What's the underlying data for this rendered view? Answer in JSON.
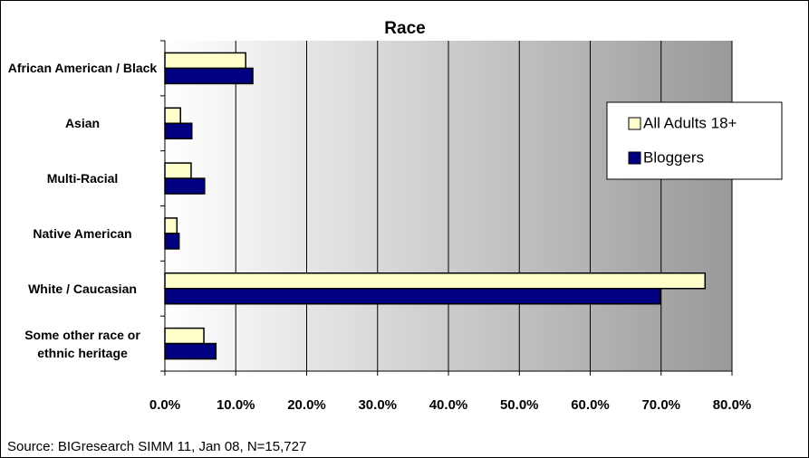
{
  "chart_data": {
    "type": "barh",
    "title": "Race",
    "categories": [
      "African American / Black",
      "Asian",
      "Multi-Racial",
      "Native American",
      "White / Caucasian",
      "Some other race or ethnic heritage"
    ],
    "series": [
      {
        "name": "All Adults 18+",
        "color": "#ffffcc",
        "values": [
          11.4,
          2.2,
          3.7,
          1.7,
          76.2,
          5.5
        ]
      },
      {
        "name": "Bloggers",
        "color": "#000080",
        "values": [
          12.4,
          3.8,
          5.6,
          2.0,
          69.9,
          7.2
        ]
      }
    ],
    "xlim": [
      0,
      80
    ],
    "xticks": [
      {
        "value": 0,
        "label": "0.0%"
      },
      {
        "value": 10,
        "label": "10.0%"
      },
      {
        "value": 20,
        "label": "20.0%"
      },
      {
        "value": 30,
        "label": "30.0%"
      },
      {
        "value": 40,
        "label": "40.0%"
      },
      {
        "value": 50,
        "label": "50.0%"
      },
      {
        "value": 60,
        "label": "60.0%"
      },
      {
        "value": 70,
        "label": "70.0%"
      },
      {
        "value": 80,
        "label": "80.0%"
      }
    ],
    "grid": true,
    "legend": "right",
    "source": "Source: BIGresearch SIMM 11, Jan 08, N=15,727"
  }
}
